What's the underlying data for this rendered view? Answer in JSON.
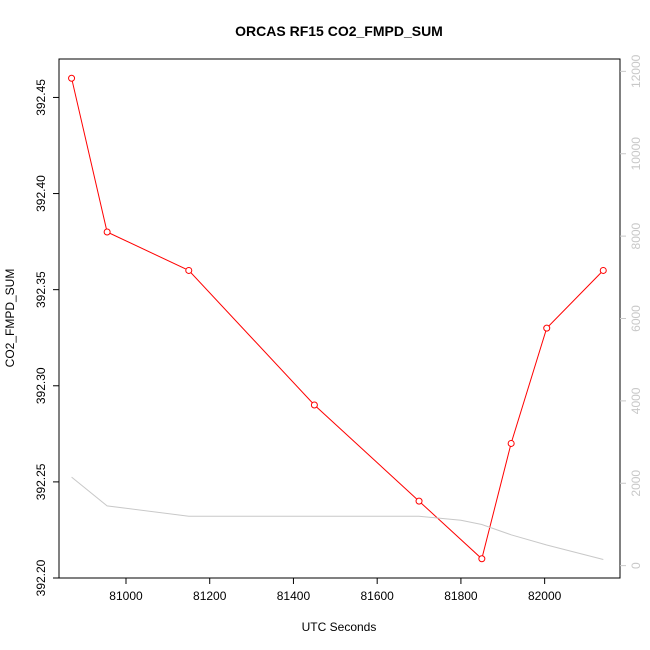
{
  "chart_data": {
    "type": "line",
    "title": "ORCAS RF15 CO2_FMPD_SUM",
    "xlabel": "UTC Seconds",
    "ylabel": "CO2_FMPD_SUM",
    "xlim": [
      80840,
      82180
    ],
    "ylim": [
      392.2,
      392.47
    ],
    "y2lim": [
      -300,
      12300
    ],
    "x_ticks": [
      "81000",
      "81200",
      "81400",
      "81600",
      "81800",
      "82000"
    ],
    "y_ticks": [
      "392.20",
      "392.25",
      "392.30",
      "392.35",
      "392.40",
      "392.45"
    ],
    "y2_ticks": [
      "0",
      "2000",
      "4000",
      "6000",
      "8000",
      "10000",
      "12000"
    ],
    "series": [
      {
        "color": "#ff0000",
        "axis": "left",
        "marker": "circle",
        "points": [
          {
            "x": 80870,
            "y": 392.46
          },
          {
            "x": 80955,
            "y": 392.38
          },
          {
            "x": 81150,
            "y": 392.36
          },
          {
            "x": 81450,
            "y": 392.29
          },
          {
            "x": 81700,
            "y": 392.24
          },
          {
            "x": 81850,
            "y": 392.21
          },
          {
            "x": 81920,
            "y": 392.27
          },
          {
            "x": 82005,
            "y": 392.33
          },
          {
            "x": 82140,
            "y": 392.36
          }
        ]
      },
      {
        "color": "#c8c8c8",
        "axis": "right",
        "marker": "none",
        "points": [
          {
            "x": 80870,
            "y": 2150
          },
          {
            "x": 80955,
            "y": 1450
          },
          {
            "x": 81150,
            "y": 1200
          },
          {
            "x": 81450,
            "y": 1200
          },
          {
            "x": 81700,
            "y": 1200
          },
          {
            "x": 81800,
            "y": 1100
          },
          {
            "x": 81850,
            "y": 1000
          },
          {
            "x": 81920,
            "y": 750
          },
          {
            "x": 82005,
            "y": 500
          },
          {
            "x": 82140,
            "y": 150
          }
        ]
      }
    ]
  }
}
